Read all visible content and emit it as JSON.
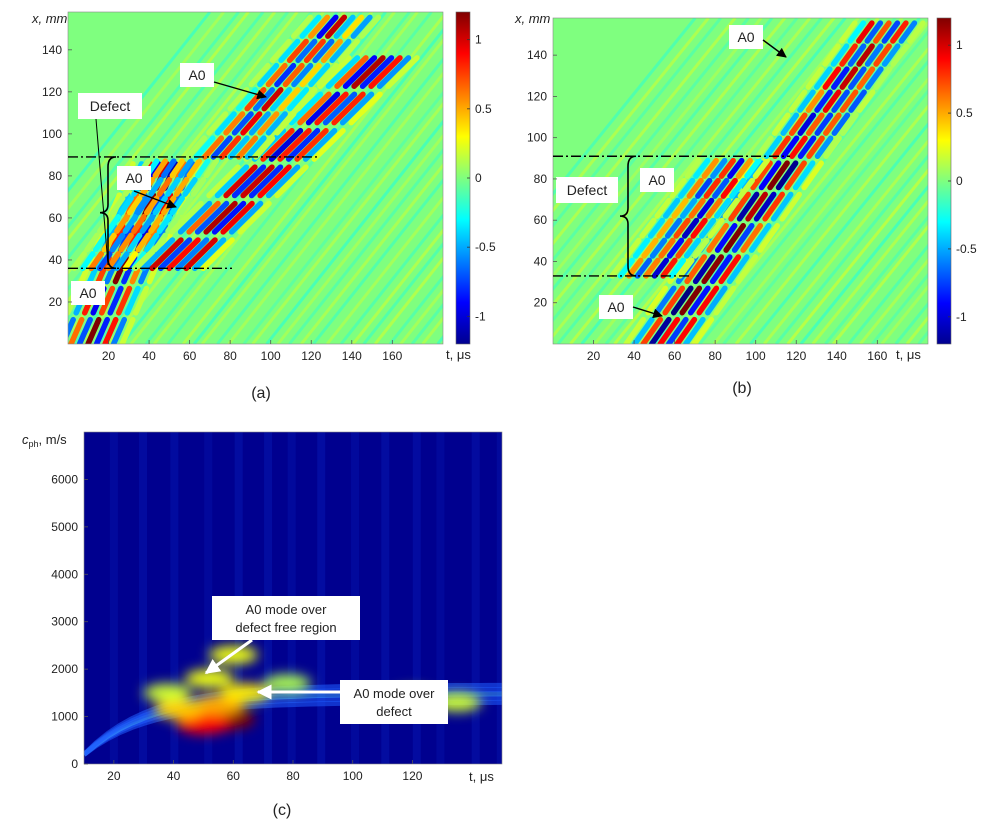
{
  "chart_data": [
    {
      "type": "heatmap",
      "caption": "(a)",
      "xlabel": "t, μs",
      "ylabel": "x, mm",
      "xlim": [
        0,
        185
      ],
      "ylim": [
        0,
        158
      ],
      "xticks": [
        20,
        40,
        60,
        80,
        100,
        120,
        140,
        160
      ],
      "yticks": [
        20,
        40,
        60,
        80,
        100,
        120,
        140
      ],
      "colorbar": {
        "range": [
          -1.2,
          1.2
        ],
        "ticks": [
          1,
          0.5,
          0,
          -0.5,
          -1
        ],
        "tick_labels": [
          "1",
          "0.5",
          "0",
          "-0.5",
          "-1"
        ],
        "colormap": "jet"
      },
      "defect_region": {
        "x_start": 36,
        "x_end": 89,
        "label": "Defect"
      },
      "annotations": [
        {
          "text": "A0",
          "t": 102,
          "x": 118
        },
        {
          "text": "A0",
          "t": 50,
          "x": 65
        },
        {
          "text": "A0",
          "t": 10,
          "x": 24
        }
      ],
      "wave_packets": [
        {
          "t0": 12,
          "x0": 0,
          "speed_mm_per_us": 2.2,
          "x_min": 0,
          "x_max": 89,
          "amplitude": 1.0
        },
        {
          "t0": 22,
          "x0": 36,
          "speed_mm_per_us": 1.4,
          "x_min": 36,
          "x_max": 89,
          "amplitude": 0.6
        },
        {
          "t0": 52,
          "x0": 36,
          "speed_mm_per_us": 0.95,
          "x_min": 36,
          "x_max": 140,
          "amplitude": 1.0
        },
        {
          "t0": 78,
          "x0": 89,
          "speed_mm_per_us": 1.1,
          "x_min": 89,
          "x_max": 158,
          "amplitude": 0.8
        }
      ]
    },
    {
      "type": "heatmap",
      "caption": "(b)",
      "xlabel": "t, μs",
      "ylabel": "x, mm",
      "xlim": [
        0,
        185
      ],
      "ylim": [
        0,
        158
      ],
      "xticks": [
        20,
        40,
        60,
        80,
        100,
        120,
        140,
        160
      ],
      "yticks": [
        20,
        40,
        60,
        80,
        100,
        120,
        140
      ],
      "colorbar": {
        "range": [
          -1.2,
          1.2
        ],
        "ticks": [
          1,
          0.5,
          0,
          -0.5,
          -1
        ],
        "tick_labels": [
          "1",
          "0.5",
          "0",
          "-0.5",
          "-1"
        ],
        "colormap": "jet"
      },
      "defect_region": {
        "x_start": 33,
        "x_end": 91,
        "label": "Defect"
      },
      "annotations": [
        {
          "text": "A0",
          "t": 128,
          "x": 140
        },
        {
          "text": "A0",
          "t": 63,
          "x": 80
        },
        {
          "text": "A0",
          "t": 58,
          "x": 12
        }
      ],
      "wave_packets": [
        {
          "t0": 55,
          "x0": 0,
          "speed_mm_per_us": 1.4,
          "x_min": 0,
          "x_max": 91,
          "amplitude": 1.0
        },
        {
          "t0": 48,
          "x0": 33,
          "speed_mm_per_us": 1.3,
          "x_min": 33,
          "x_max": 91,
          "amplitude": 0.9
        },
        {
          "t0": 120,
          "x0": 91,
          "speed_mm_per_us": 1.35,
          "x_min": 91,
          "x_max": 158,
          "amplitude": 1.0
        }
      ]
    },
    {
      "type": "heatmap",
      "caption": "(c)",
      "xlabel": "t, μs",
      "ylabel": "c_ph, m/s",
      "ylabel_main": "c",
      "ylabel_sub": "ph",
      "ylabel_unit": ", m/s",
      "xlim": [
        10,
        150
      ],
      "ylim": [
        0,
        7000
      ],
      "xticks": [
        20,
        40,
        60,
        80,
        100,
        120
      ],
      "yticks": [
        0,
        1000,
        2000,
        3000,
        4000,
        5000,
        6000
      ],
      "colormap": "jet",
      "annotations": [
        {
          "text_lines": [
            "A0 mode over",
            "defect free region"
          ],
          "t": 47,
          "c": 1250
        },
        {
          "text_lines": [
            "A0 mode over",
            "defect"
          ],
          "t": 68,
          "c": 900
        }
      ],
      "energy_spots": [
        {
          "t": 58,
          "c": 950,
          "intensity": 1.0
        },
        {
          "t": 50,
          "c": 850,
          "intensity": 0.8
        },
        {
          "t": 55,
          "c": 1250,
          "intensity": 0.55
        },
        {
          "t": 42,
          "c": 1150,
          "intensity": 0.5
        },
        {
          "t": 64,
          "c": 1500,
          "intensity": 0.45
        },
        {
          "t": 60,
          "c": 2300,
          "intensity": 0.4
        },
        {
          "t": 52,
          "c": 1800,
          "intensity": 0.4
        },
        {
          "t": 38,
          "c": 1500,
          "intensity": 0.35
        },
        {
          "t": 78,
          "c": 1700,
          "intensity": 0.3
        },
        {
          "t": 120,
          "c": 1400,
          "intensity": 0.35
        },
        {
          "t": 135,
          "c": 1300,
          "intensity": 0.35
        }
      ]
    }
  ]
}
